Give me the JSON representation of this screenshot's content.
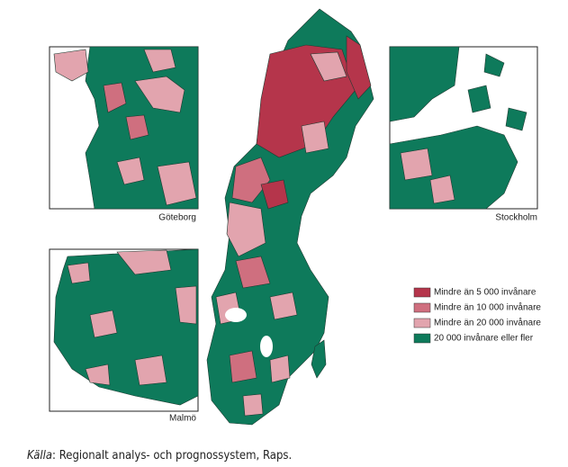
{
  "insets": [
    {
      "label": "Göteborg"
    },
    {
      "label": "Stockholm"
    },
    {
      "label": "Malmö"
    }
  ],
  "legend": [
    {
      "label": "Mindre än 5 000 invånare",
      "color": "#b5354b"
    },
    {
      "label": "Mindre än 10 000 invånare",
      "color": "#cf6f7f"
    },
    {
      "label": "Mindre än 20 000 invånare",
      "color": "#e2a4ae"
    },
    {
      "label": "20 000 invånare eller fler",
      "color": "#0e7a5b"
    }
  ],
  "source": {
    "label": "Källa",
    "text": ": Regionalt analys- och prognossystem, Raps."
  }
}
